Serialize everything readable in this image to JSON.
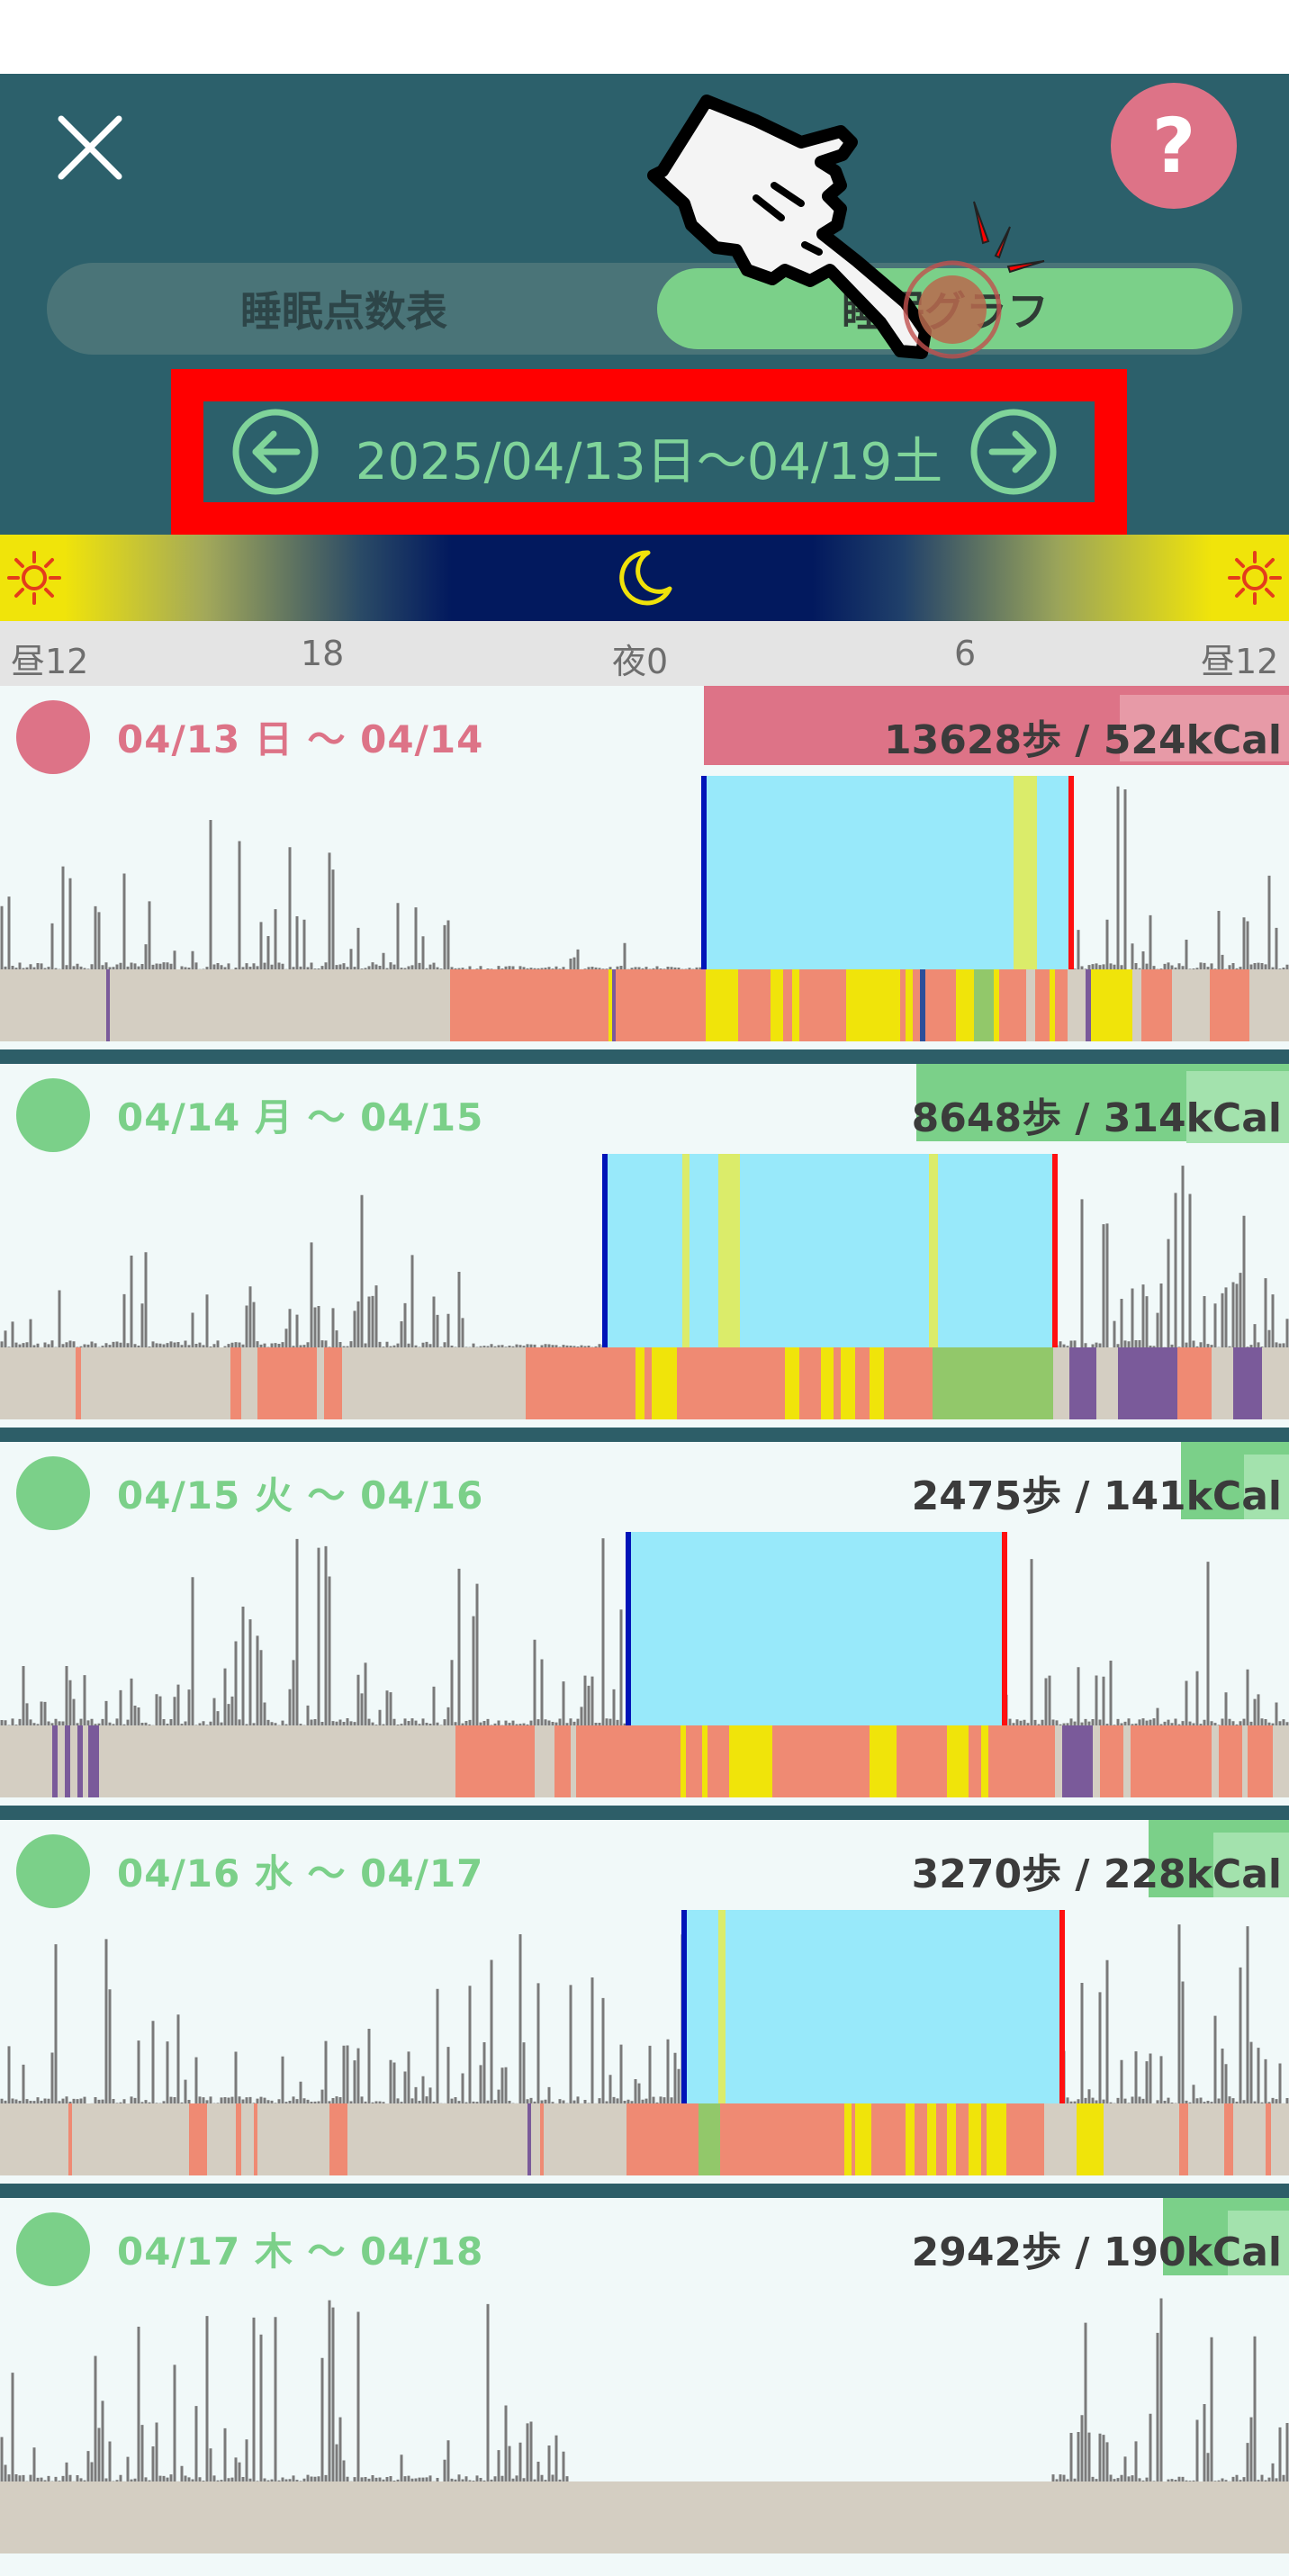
{
  "colors": {
    "header_bg": "#2c606b",
    "accent_red": "#ff0000",
    "pink": "#dd7387",
    "green": "#7bd089",
    "light_blue": "#98e9fa"
  },
  "header": {
    "close_icon": "close-icon",
    "help_label": "?",
    "tabs": [
      {
        "label": "睡眠点数表",
        "active": false
      },
      {
        "label": "睡眠グラフ",
        "active": true
      }
    ],
    "date_range": "2025/04/13日〜04/19土"
  },
  "time_axis": {
    "labels": [
      "昼12",
      "18",
      "夜0",
      "6",
      "昼12"
    ]
  },
  "days": [
    {
      "label": "04/13 日 〜 04/14",
      "steps": "13628歩 / 524kCal",
      "color": "#dd7387"
    },
    {
      "label": "04/14 月 〜 04/15",
      "steps": "8648歩 / 314kCal",
      "color": "#7bd089"
    },
    {
      "label": "04/15 火 〜 04/16",
      "steps": "2475歩 / 141kCal",
      "color": "#7bd089"
    },
    {
      "label": "04/16 水 〜 04/17",
      "steps": "3270歩 / 228kCal",
      "color": "#7bd089"
    },
    {
      "label": "04/17 木 〜 04/18",
      "steps": "2942歩 / 190kCal",
      "color": "#7bd089"
    }
  ]
}
